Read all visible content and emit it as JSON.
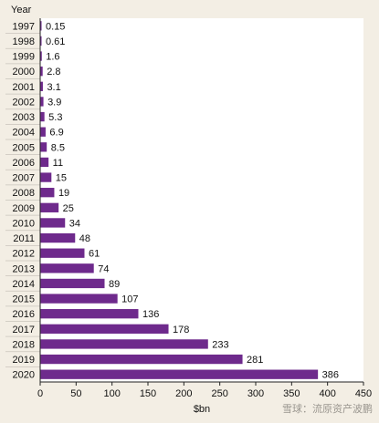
{
  "colors": {
    "background": "#f3eee4",
    "plot_background": "#ffffff",
    "bar": "#6e2a8c",
    "axis": "#222222",
    "grid": "#c9c4bb"
  },
  "watermark": {
    "text": "雪球：流原资产波鹏"
  },
  "chart_data": {
    "type": "bar",
    "orientation": "horizontal",
    "title": "",
    "ylabel": "Year",
    "xlabel": "$bn",
    "xlim": [
      0,
      450
    ],
    "xticks": [
      0,
      50,
      100,
      150,
      200,
      250,
      300,
      350,
      400,
      450
    ],
    "grid": false,
    "categories": [
      "1997",
      "1998",
      "1999",
      "2000",
      "2001",
      "2002",
      "2003",
      "2004",
      "2005",
      "2006",
      "2007",
      "2008",
      "2009",
      "2010",
      "2011",
      "2012",
      "2013",
      "2014",
      "2015",
      "2016",
      "2017",
      "2018",
      "2019",
      "2020"
    ],
    "values": [
      0.15,
      0.61,
      1.6,
      2.8,
      3.1,
      3.9,
      5.3,
      6.9,
      8.5,
      11,
      15,
      19,
      25,
      34,
      48,
      61,
      74,
      89,
      107,
      136,
      178,
      233,
      281,
      386
    ],
    "value_labels": [
      "0.15",
      "0.61",
      "1.6",
      "2.8",
      "3.1",
      "3.9",
      "5.3",
      "6.9",
      "8.5",
      "11",
      "15",
      "19",
      "25",
      "34",
      "48",
      "61",
      "74",
      "89",
      "107",
      "136",
      "178",
      "233",
      "281",
      "386"
    ]
  }
}
